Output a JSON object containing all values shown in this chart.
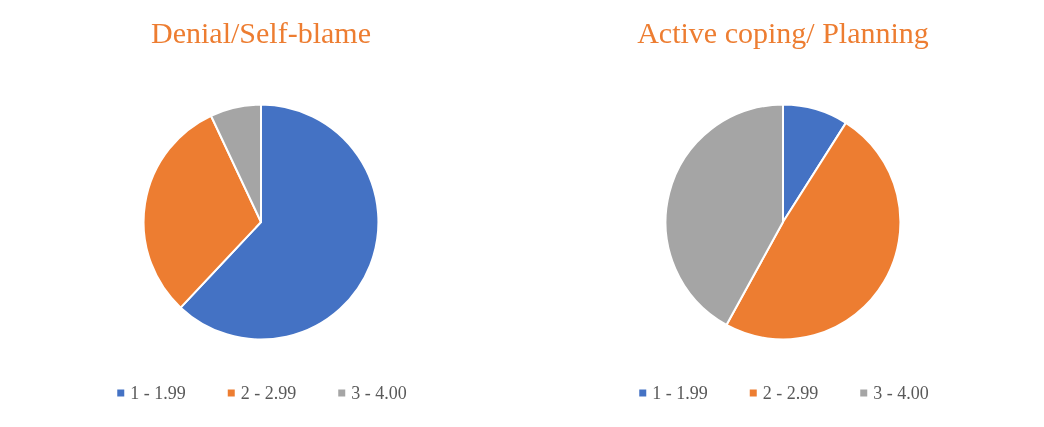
{
  "chart_data": [
    {
      "type": "pie",
      "title": "Denial/Self-blame",
      "categories": [
        "1 - 1.99",
        "2 - 2.99",
        "3 - 4.00"
      ],
      "values": [
        62,
        31,
        7
      ],
      "colors": [
        "#4472c4",
        "#ed7d31",
        "#a5a5a5"
      ],
      "legend": "bottom"
    },
    {
      "type": "pie",
      "title": "Active coping/ Planning",
      "categories": [
        "1 - 1.99",
        "2 - 2.99",
        "3 - 4.00"
      ],
      "values": [
        9,
        49,
        42
      ],
      "colors": [
        "#4472c4",
        "#ed7d31",
        "#a5a5a5"
      ],
      "legend": "bottom"
    }
  ]
}
